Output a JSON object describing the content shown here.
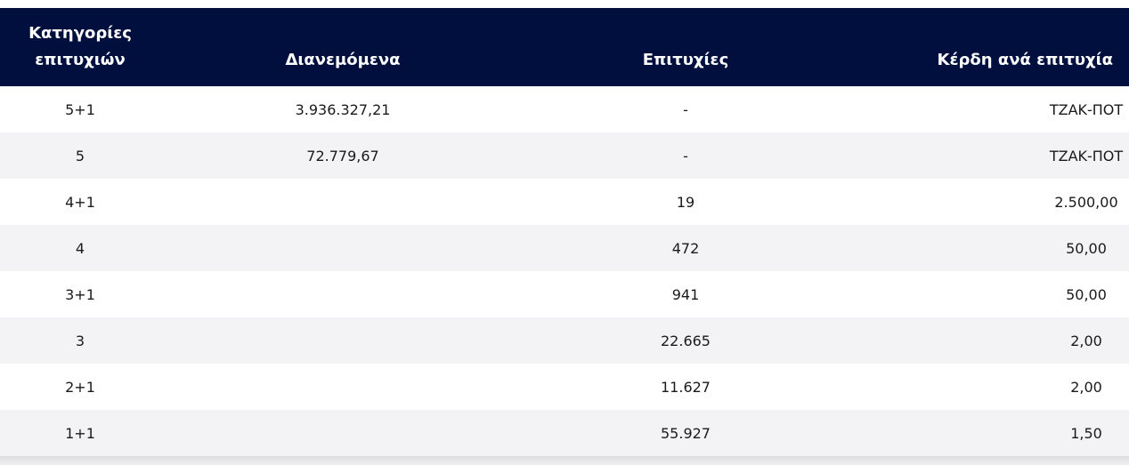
{
  "table": {
    "headers": {
      "category_line1": "Κατηγορίες",
      "category_line2": "επιτυχιών",
      "distributed": "Διανεμόμενα",
      "winners": "Επιτυχίες",
      "prize_per_winner": "Κέρδη ανά επιτυχία"
    },
    "rows": [
      {
        "category": "5+1",
        "distributed": "3.936.327,21",
        "winners": "-",
        "prize": "ΤΖΑΚ-ΠΟΤ"
      },
      {
        "category": "5",
        "distributed": "72.779,67",
        "winners": "-",
        "prize": "ΤΖΑΚ-ΠΟΤ"
      },
      {
        "category": "4+1",
        "distributed": "",
        "winners": "19",
        "prize": "2.500,00"
      },
      {
        "category": "4",
        "distributed": "",
        "winners": "472",
        "prize": "50,00"
      },
      {
        "category": "3+1",
        "distributed": "",
        "winners": "941",
        "prize": "50,00"
      },
      {
        "category": "3",
        "distributed": "",
        "winners": "22.665",
        "prize": "2,00"
      },
      {
        "category": "2+1",
        "distributed": "",
        "winners": "11.627",
        "prize": "2,00"
      },
      {
        "category": "1+1",
        "distributed": "",
        "winners": "55.927",
        "prize": "1,50"
      }
    ]
  },
  "colors": {
    "header_bg": "#000f3d",
    "header_text": "#ffffff",
    "row_alt_bg": "#f3f3f5"
  }
}
